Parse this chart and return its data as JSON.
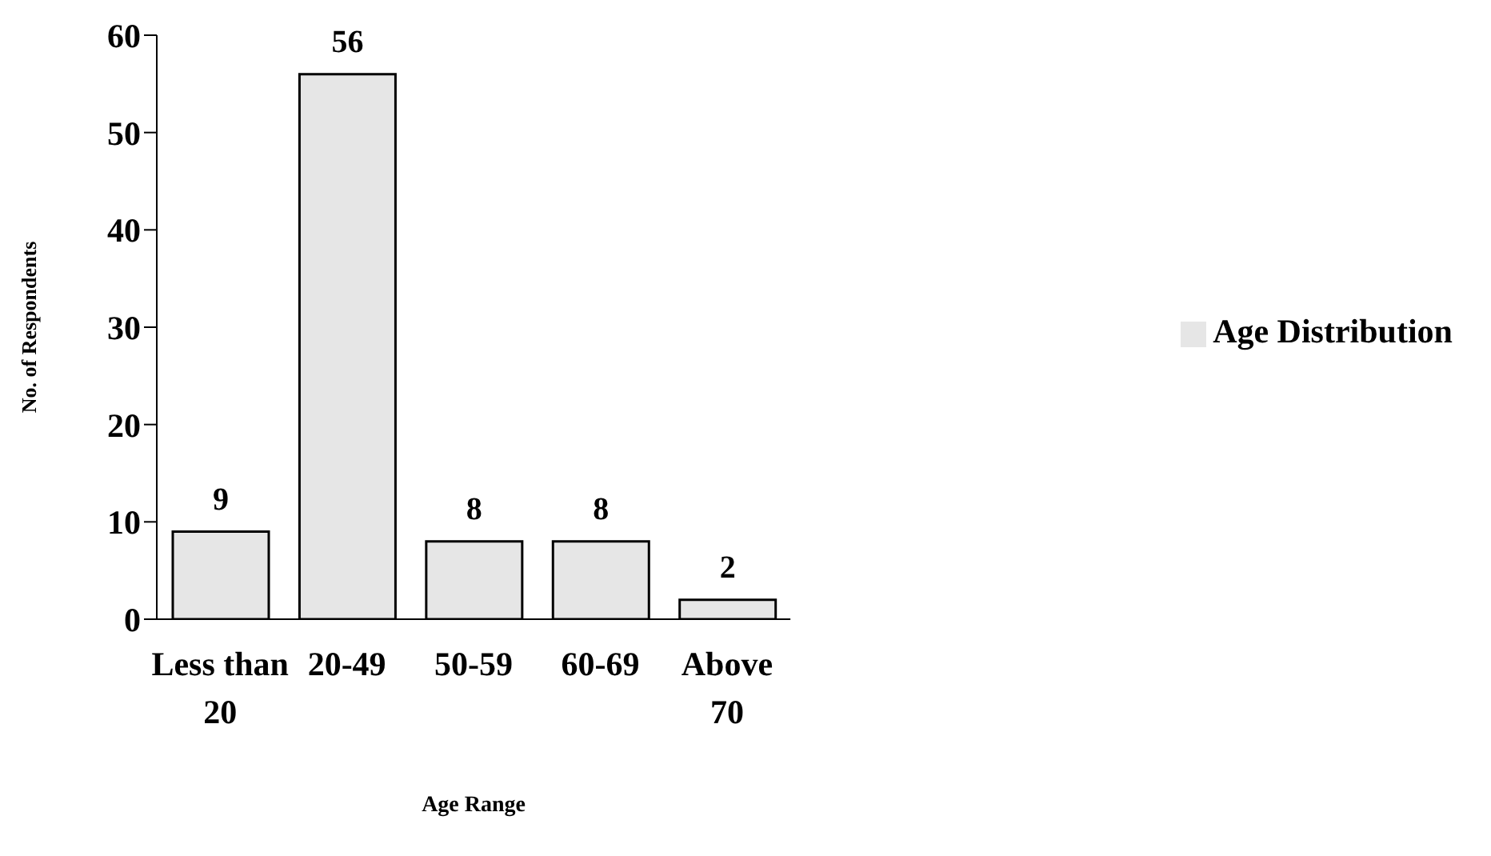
{
  "chart_data": {
    "type": "bar",
    "xlabel": "Age Range",
    "ylabel": "No. of Respondents",
    "categories": [
      "Less than 20",
      "20-49",
      "50-59",
      "60-69",
      "Above 70"
    ],
    "series": [
      {
        "name": "Age Distribution",
        "color": "#e6e6e6",
        "values": [
          9,
          56,
          8,
          8,
          2
        ]
      }
    ],
    "ylim": [
      0,
      60
    ],
    "yticks": [
      0,
      10,
      20,
      30,
      40,
      50,
      60
    ],
    "data_labels": true,
    "legend": "right",
    "grid": false
  }
}
